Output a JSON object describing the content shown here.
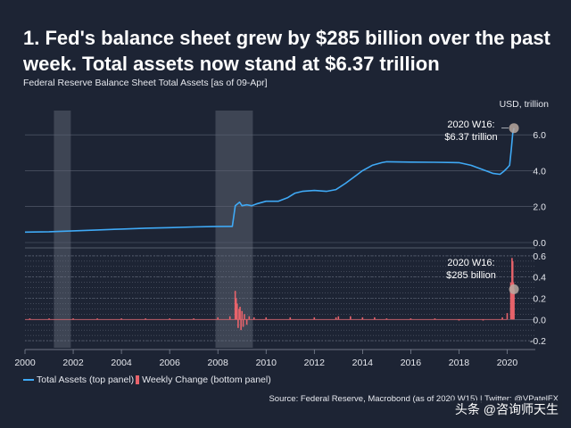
{
  "title": "1. Fed's balance sheet grew by $285 billion over the past week. Total assets now stand at $6.37 trillion",
  "subtitle": "Federal Reserve Balance Sheet Total Assets [as of 09-Apr]",
  "unit_label": "USD, trillion",
  "annotation_top": [
    "2020 W16:",
    "$6.37 trillion"
  ],
  "annotation_bottom": [
    "2020 W16:",
    "$285 billion"
  ],
  "legend": {
    "total_assets": "Total Assets (top panel)",
    "weekly_change": "Weekly Change (bottom panel)"
  },
  "source": "Source: Federal Reserve, Macrobond (as of 2020 W15) | Twitter: @VPatelFX",
  "watermark": "头条 @咨询师天生",
  "colors": {
    "background": "#1d2434",
    "total_assets_line": "#3fa9f5",
    "weekly_change_bars": "#e8636b",
    "recession_shade": "#5a6170"
  },
  "chart_data": [
    {
      "type": "line",
      "series": [
        {
          "name": "Total Assets (top panel)",
          "x": [
            2000.0,
            2001.0,
            2002.0,
            2003.0,
            2004.0,
            2005.0,
            2006.0,
            2007.0,
            2007.8,
            2008.6,
            2008.72,
            2008.9,
            2009.0,
            2009.2,
            2009.4,
            2009.6,
            2010.0,
            2010.5,
            2010.9,
            2011.2,
            2011.5,
            2012.0,
            2012.5,
            2012.9,
            2013.3,
            2013.7,
            2014.0,
            2014.4,
            2014.8,
            2015.0,
            2016.0,
            2017.0,
            2018.0,
            2018.5,
            2019.0,
            2019.4,
            2019.7,
            2019.85,
            2020.0,
            2020.1,
            2020.17,
            2020.23,
            2020.28
          ],
          "y": [
            0.58,
            0.6,
            0.65,
            0.7,
            0.75,
            0.8,
            0.83,
            0.87,
            0.89,
            0.9,
            2.05,
            2.25,
            2.05,
            2.1,
            2.05,
            2.15,
            2.3,
            2.3,
            2.5,
            2.75,
            2.85,
            2.9,
            2.85,
            2.95,
            3.3,
            3.7,
            4.0,
            4.3,
            4.45,
            4.5,
            4.48,
            4.47,
            4.45,
            4.3,
            4.05,
            3.85,
            3.8,
            3.95,
            4.15,
            4.3,
            5.2,
            6.08,
            6.37
          ]
        }
      ],
      "ylim": [
        0,
        7
      ],
      "yticks": [
        0.0,
        2.0,
        4.0,
        6.0
      ],
      "ytick_labels": [
        "0.0",
        "2.0",
        "4.0",
        "6.0"
      ],
      "recessions": [
        [
          2001.2,
          2001.9
        ],
        [
          2007.9,
          2009.45
        ]
      ],
      "annotation_point": {
        "x": 2020.28,
        "y": 6.37
      }
    },
    {
      "type": "bar",
      "series": [
        {
          "name": "Weekly Change (bottom panel)",
          "x": [
            2000.2,
            2001.0,
            2002.0,
            2003.0,
            2004.0,
            2005.0,
            2006.0,
            2007.0,
            2008.0,
            2008.5,
            2008.72,
            2008.76,
            2008.8,
            2008.84,
            2008.88,
            2008.92,
            2008.96,
            2009.0,
            2009.05,
            2009.1,
            2009.2,
            2009.3,
            2009.5,
            2010.0,
            2011.0,
            2012.0,
            2012.9,
            2013.0,
            2013.5,
            2014.0,
            2014.5,
            2015.0,
            2016.0,
            2017.0,
            2018.0,
            2019.0,
            2019.8,
            2020.0,
            2020.15,
            2020.2,
            2020.23,
            2020.26,
            2020.28
          ],
          "y": [
            0.01,
            0.01,
            0.01,
            0.01,
            0.01,
            0.01,
            0.01,
            0.01,
            0.02,
            0.03,
            0.27,
            0.2,
            0.15,
            -0.08,
            0.1,
            0.12,
            -0.1,
            0.08,
            -0.07,
            0.05,
            -0.05,
            0.03,
            0.02,
            0.02,
            0.02,
            0.02,
            0.02,
            0.03,
            0.03,
            0.02,
            0.02,
            0.01,
            0.01,
            0.01,
            -0.01,
            -0.01,
            0.02,
            0.06,
            0.35,
            0.58,
            0.55,
            0.35,
            0.285
          ]
        }
      ],
      "ylim": [
        -0.25,
        0.65
      ],
      "yticks": [
        -0.2,
        0.0,
        0.2,
        0.4,
        0.6
      ],
      "ytick_labels": [
        "-0.2",
        "0.0",
        "0.2",
        "0.4",
        "0.6"
      ],
      "annotation_point": {
        "x": 2020.28,
        "y": 0.285
      },
      "x_axis": {
        "xlim": [
          2000,
          2020.5
        ],
        "ticks": [
          2000,
          2002,
          2004,
          2006,
          2008,
          2010,
          2012,
          2014,
          2016,
          2018,
          2020
        ],
        "tick_labels": [
          "2000",
          "2002",
          "2004",
          "2006",
          "2008",
          "2010",
          "2012",
          "2014",
          "2016",
          "2018",
          "2020"
        ]
      }
    }
  ]
}
